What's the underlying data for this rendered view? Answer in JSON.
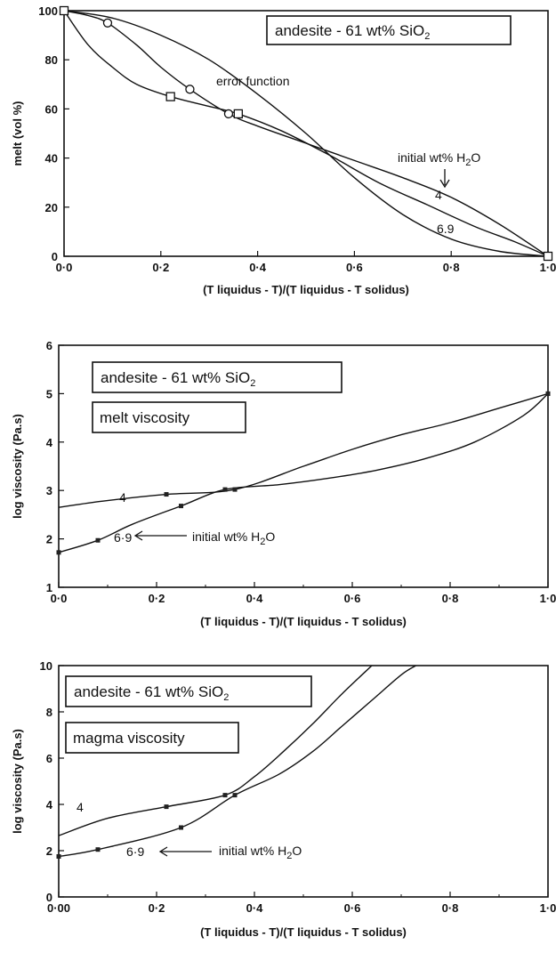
{
  "chart_data": [
    {
      "type": "line",
      "title": "",
      "xlabel": "(T liquidus - T)/(T liquidus - T solidus)",
      "ylabel": "melt (vol %)",
      "xlim": [
        0,
        1
      ],
      "ylim": [
        0,
        100
      ],
      "x_ticks": [
        "0·0",
        "0·2",
        "0·4",
        "0·6",
        "0·8",
        "1·0"
      ],
      "y_ticks": [
        "0",
        "20",
        "40",
        "60",
        "80",
        "100"
      ],
      "grid": false,
      "box_label": {
        "main": "andesite - 61 wt% SiO",
        "sub": "2"
      },
      "annotations": {
        "error_function": "error function",
        "initial_water": {
          "main": "initial wt% H",
          "sub": "2",
          "tail": "O"
        },
        "label_4": "4",
        "label_69": "6.9"
      },
      "series": [
        {
          "name": "4",
          "marker": "circle",
          "x": [
            0,
            0.05,
            0.09,
            0.15,
            0.2,
            0.26,
            0.34,
            0.4,
            0.5,
            0.6,
            0.7,
            0.8,
            0.9,
            1.0
          ],
          "y": [
            100,
            98,
            95,
            86,
            77,
            68,
            58,
            53,
            46,
            39,
            32,
            24,
            13,
            0
          ],
          "marker_x": [
            0.09,
            0.26,
            0.34
          ],
          "marker_y": [
            95,
            68,
            58
          ]
        },
        {
          "name": "6.9",
          "marker": "square",
          "x": [
            0,
            0.05,
            0.1,
            0.15,
            0.22,
            0.3,
            0.36,
            0.45,
            0.55,
            0.65,
            0.75,
            0.85,
            0.93,
            1.0
          ],
          "y": [
            100,
            86,
            77,
            70,
            65,
            61,
            58,
            51,
            41,
            30,
            21,
            12,
            6,
            0
          ],
          "marker_x": [
            0.0,
            0.22,
            0.36,
            1.0
          ],
          "marker_y": [
            100,
            65,
            58,
            0
          ]
        },
        {
          "name": "error function",
          "marker": "none",
          "x": [
            0,
            0.1,
            0.2,
            0.3,
            0.4,
            0.5,
            0.6,
            0.7,
            0.8,
            0.9,
            1.0
          ],
          "y": [
            100,
            97,
            90,
            80,
            66,
            50,
            32,
            17,
            7,
            2,
            0
          ]
        }
      ]
    },
    {
      "type": "line",
      "title": "",
      "xlabel": "(T liquidus - T)/(T liquidus - T solidus)",
      "ylabel": "log viscosity (Pa.s)",
      "xlim": [
        0,
        1
      ],
      "ylim": [
        1,
        6
      ],
      "x_ticks": [
        "0·0",
        "0·2",
        "0·4",
        "0·6",
        "0·8",
        "1·0"
      ],
      "y_ticks": [
        "1",
        "2",
        "3",
        "4",
        "5",
        "6"
      ],
      "grid": false,
      "box_label": {
        "main": "andesite - 61 wt% SiO",
        "sub": "2"
      },
      "box_label2": "melt viscosity",
      "annotations": {
        "initial_water": {
          "main": "initial wt% H",
          "sub": "2",
          "tail": "O"
        },
        "label_4": "4",
        "label_69": "6·9"
      },
      "series": [
        {
          "name": "4",
          "x": [
            0,
            0.09,
            0.22,
            0.36,
            0.5,
            0.6,
            0.7,
            0.8,
            0.9,
            1.0
          ],
          "y": [
            2.65,
            2.78,
            2.92,
            3.02,
            3.5,
            3.85,
            4.15,
            4.4,
            4.7,
            5.0
          ],
          "marker_x": [
            0.22,
            0.36,
            1.0
          ],
          "marker_y": [
            2.92,
            3.02,
            5.0
          ]
        },
        {
          "name": "6·9",
          "x": [
            0,
            0.08,
            0.15,
            0.25,
            0.34,
            0.45,
            0.55,
            0.65,
            0.75,
            0.85,
            0.95,
            1.0
          ],
          "y": [
            1.72,
            1.97,
            2.3,
            2.68,
            3.02,
            3.12,
            3.25,
            3.42,
            3.66,
            4.0,
            4.55,
            5.0
          ],
          "marker_x": [
            0.0,
            0.08,
            0.25,
            0.34,
            1.0
          ],
          "marker_y": [
            1.72,
            1.97,
            2.68,
            3.02,
            5.0
          ]
        }
      ]
    },
    {
      "type": "line",
      "title": "",
      "xlabel": "(T liquidus - T)/(T liquidus - T solidus)",
      "ylabel": "log viscosity (Pa.s)",
      "xlim": [
        0,
        1
      ],
      "ylim": [
        0,
        10
      ],
      "x_ticks": [
        "0·00",
        "0·2",
        "0·4",
        "0·6",
        "0·8",
        "1·0"
      ],
      "y_ticks": [
        "0",
        "2",
        "4",
        "6",
        "8",
        "10"
      ],
      "grid": false,
      "box_label": {
        "main": "andesite - 61 wt% SiO",
        "sub": "2"
      },
      "box_label2": "magma viscosity",
      "annotations": {
        "initial_water": {
          "main": "initial wt% H",
          "sub": "2",
          "tail": "O"
        },
        "label_4": "4",
        "label_69": "6·9"
      },
      "series": [
        {
          "name": "4",
          "x": [
            0,
            0.1,
            0.22,
            0.34,
            0.4,
            0.46,
            0.52,
            0.58,
            0.64
          ],
          "y": [
            2.65,
            3.4,
            3.9,
            4.4,
            5.2,
            6.3,
            7.5,
            8.8,
            10.0
          ],
          "marker_x": [
            0.22,
            0.34
          ],
          "marker_y": [
            3.9,
            4.4
          ]
        },
        {
          "name": "6·9",
          "x": [
            0,
            0.08,
            0.25,
            0.36,
            0.45,
            0.52,
            0.58,
            0.64,
            0.7,
            0.73
          ],
          "y": [
            1.75,
            2.05,
            3.0,
            4.4,
            5.3,
            6.3,
            7.4,
            8.5,
            9.6,
            10.0
          ],
          "marker_x": [
            0.0,
            0.08,
            0.25,
            0.36
          ],
          "marker_y": [
            1.75,
            2.05,
            3.0,
            4.4
          ]
        }
      ]
    }
  ]
}
